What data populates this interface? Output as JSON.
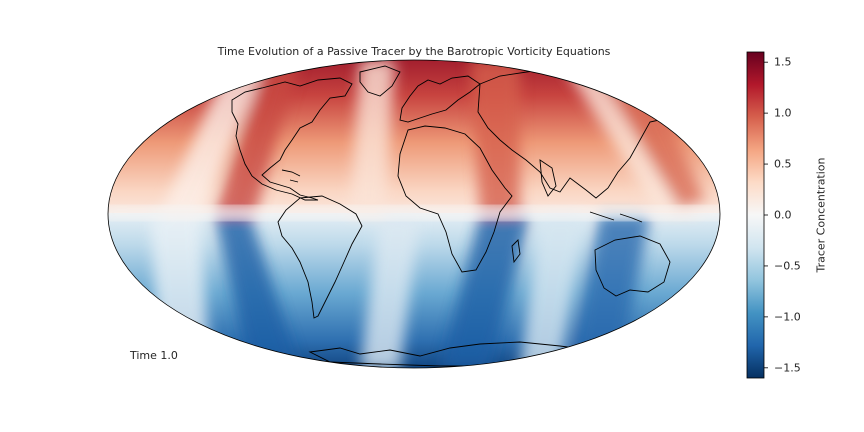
{
  "title": "Time Evolution of a Passive Tracer by the Barotropic Vorticity Equations",
  "time_label": "Time 1.0",
  "colorbar": {
    "label": "Tracer Concentration",
    "min": -1.6,
    "max": 1.6,
    "ticks": [
      {
        "value": 1.5,
        "label": "1.5"
      },
      {
        "value": 1.0,
        "label": "1.0"
      },
      {
        "value": 0.5,
        "label": "0.5"
      },
      {
        "value": 0.0,
        "label": "0.0"
      },
      {
        "value": -0.5,
        "label": "−0.5"
      },
      {
        "value": -1.0,
        "label": "−1.0"
      },
      {
        "value": -1.5,
        "label": "−1.5"
      }
    ],
    "colormap": [
      "#053061",
      "#2166ac",
      "#4393c3",
      "#92c5de",
      "#d1e5f0",
      "#f7f7f7",
      "#fddbc7",
      "#f4a582",
      "#d6604d",
      "#b2182b",
      "#67001f"
    ]
  },
  "map": {
    "projection": "Mollweide",
    "coastline_color": "#000000"
  }
}
